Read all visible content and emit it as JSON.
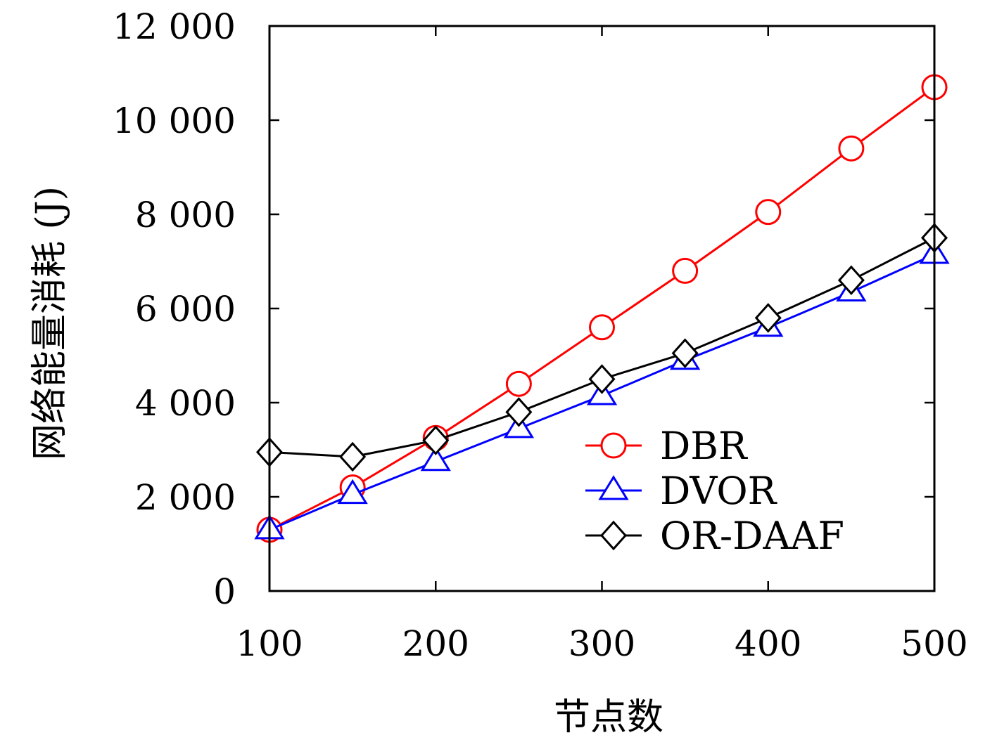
{
  "chart_data": {
    "type": "line",
    "title": "",
    "xlabel": "节点数",
    "ylabel": "网络能量消耗 (J)",
    "xlim": [
      100,
      500
    ],
    "ylim": [
      0,
      12000
    ],
    "x_ticks": [
      100,
      200,
      300,
      400,
      500
    ],
    "x_tick_labels": [
      "100",
      "200",
      "300",
      "400",
      "500"
    ],
    "y_ticks": [
      0,
      2000,
      4000,
      6000,
      8000,
      10000,
      12000
    ],
    "y_tick_labels": [
      "0",
      "2 000",
      "4 000",
      "6 000",
      "8 000",
      "10 000",
      "12 000"
    ],
    "grid": false,
    "legend_position": "lower-right",
    "x": [
      100,
      150,
      200,
      250,
      300,
      350,
      400,
      450,
      500
    ],
    "series": [
      {
        "name": "DBR",
        "color": "#ff0000",
        "marker": "circle",
        "values": [
          1300,
          2200,
          3250,
          4400,
          5600,
          6800,
          8050,
          9400,
          10700
        ]
      },
      {
        "name": "DVOR",
        "color": "#0000ff",
        "marker": "triangle",
        "values": [
          1300,
          2050,
          2750,
          3450,
          4150,
          4900,
          5600,
          6350,
          7150
        ]
      },
      {
        "name": "OR-DAAF",
        "color": "#000000",
        "marker": "diamond",
        "values": [
          2950,
          2850,
          3200,
          3800,
          4500,
          5050,
          5800,
          6600,
          7500
        ]
      }
    ]
  }
}
